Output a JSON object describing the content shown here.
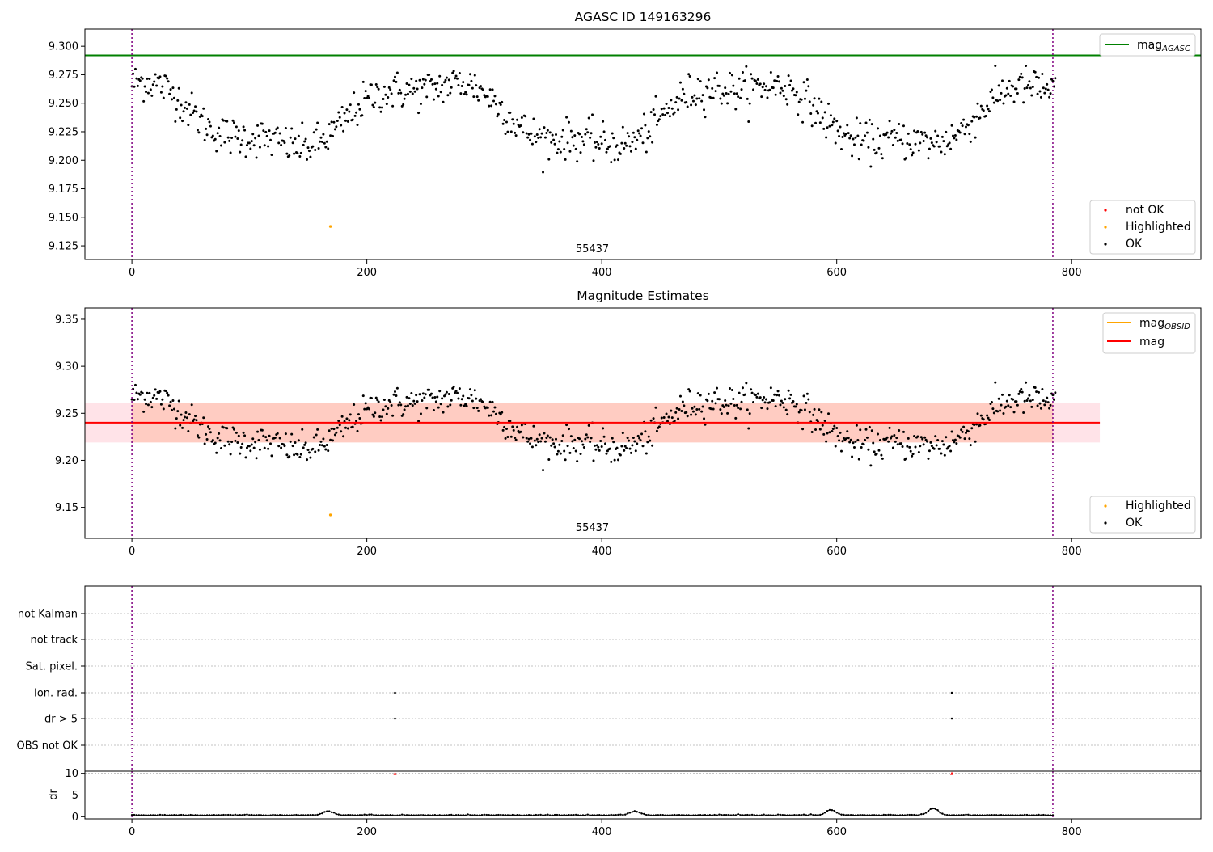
{
  "colors": {
    "ok": "#000000",
    "not_ok": "#ff0000",
    "highlighted": "#ffa500",
    "mag_agasc": "#008000",
    "mag_obsid": "#ffa500",
    "mag": "#ff0000",
    "band_outer": "#ffc0cb",
    "band_inner": "#ffa07a",
    "obs_edge": "#800080",
    "grid": "#b0b0b0"
  },
  "chart_data": [
    {
      "type": "scatter",
      "title": "AGASC ID 149163296",
      "xlim": [
        -40,
        910
      ],
      "ylim": [
        9.113,
        9.315
      ],
      "x_ticks": [
        "0",
        "200",
        "400",
        "600",
        "800"
      ],
      "x_tick_values": [
        0,
        200,
        400,
        600,
        800
      ],
      "y_ticks": [
        "9.300",
        "9.275",
        "9.250",
        "9.225",
        "9.200",
        "9.175",
        "9.150",
        "9.125"
      ],
      "y_tick_values": [
        9.3,
        9.275,
        9.25,
        9.225,
        9.2,
        9.175,
        9.15,
        9.125
      ],
      "obsid_label": "55437",
      "obsid_label_x": 392,
      "obs_boundaries": [
        0,
        784
      ],
      "mag_agasc": 9.292,
      "highlighted_points": [
        [
          169,
          9.142
        ]
      ],
      "series_hint": "OK points follow a quasi-periodic light curve between ~9.195 and ~9.283",
      "legend_lines": [
        {
          "label": "mag",
          "subscript": "AGASC",
          "color": "mag_agasc"
        }
      ],
      "legend_points": [
        {
          "label": "not OK",
          "color": "not_ok"
        },
        {
          "label": "Highlighted",
          "color": "highlighted"
        },
        {
          "label": "OK",
          "color": "ok"
        }
      ],
      "legend_placement": "upper-right / lower-right"
    },
    {
      "type": "scatter",
      "title": "Magnitude Estimates",
      "xlim": [
        -40,
        910
      ],
      "ylim": [
        9.117,
        9.362
      ],
      "x_ticks": [
        "0",
        "200",
        "400",
        "600",
        "800"
      ],
      "x_tick_values": [
        0,
        200,
        400,
        600,
        800
      ],
      "y_ticks": [
        "9.35",
        "9.30",
        "9.25",
        "9.20",
        "9.15"
      ],
      "y_tick_values": [
        9.35,
        9.3,
        9.25,
        9.2,
        9.15
      ],
      "obsid_label": "55437",
      "obsid_label_x": 392,
      "obs_boundaries": [
        0,
        784
      ],
      "mag": 9.24,
      "mag_band": [
        9.219,
        9.261
      ],
      "band_x_range": [
        -40,
        824
      ],
      "highlighted_points": [
        [
          169,
          9.142
        ]
      ],
      "legend_lines": [
        {
          "label": "mag",
          "subscript": "OBSID",
          "color": "mag_obsid"
        },
        {
          "label": "mag",
          "subscript": "",
          "color": "mag"
        }
      ],
      "legend_points": [
        {
          "label": "Highlighted",
          "color": "highlighted"
        },
        {
          "label": "OK",
          "color": "ok"
        }
      ],
      "legend_placement": "upper-right / lower-right"
    },
    {
      "type": "scatter",
      "xlim": [
        -40,
        910
      ],
      "flag_categories": [
        "not Kalman",
        "not track",
        "Sat. pixel.",
        "Ion. rad.",
        "dr > 5",
        "OBS not OK"
      ],
      "flag_points": [
        {
          "flag": "Ion. rad.",
          "x": [
            224,
            698
          ]
        },
        {
          "flag": "dr > 5",
          "x": [
            224,
            698
          ]
        }
      ],
      "obs_boundaries": [
        0,
        784
      ]
    },
    {
      "type": "line",
      "ylabel": "dr",
      "xlim": [
        -40,
        910
      ],
      "ylim": [
        -0.5,
        10.5
      ],
      "x_ticks": [
        "0",
        "200",
        "400",
        "600",
        "800"
      ],
      "x_tick_values": [
        0,
        200,
        400,
        600,
        800
      ],
      "y_ticks": [
        "10",
        "5",
        "0"
      ],
      "y_tick_values": [
        10,
        5,
        0
      ],
      "clipped_points_x": [
        224,
        698
      ],
      "clipped_value": 10,
      "bumps": [
        [
          167,
          0.9
        ],
        [
          428,
          0.9
        ],
        [
          595,
          1.2
        ],
        [
          682,
          1.6
        ]
      ],
      "series_hint": "dr stays near 0.3 with small bumps"
    }
  ]
}
